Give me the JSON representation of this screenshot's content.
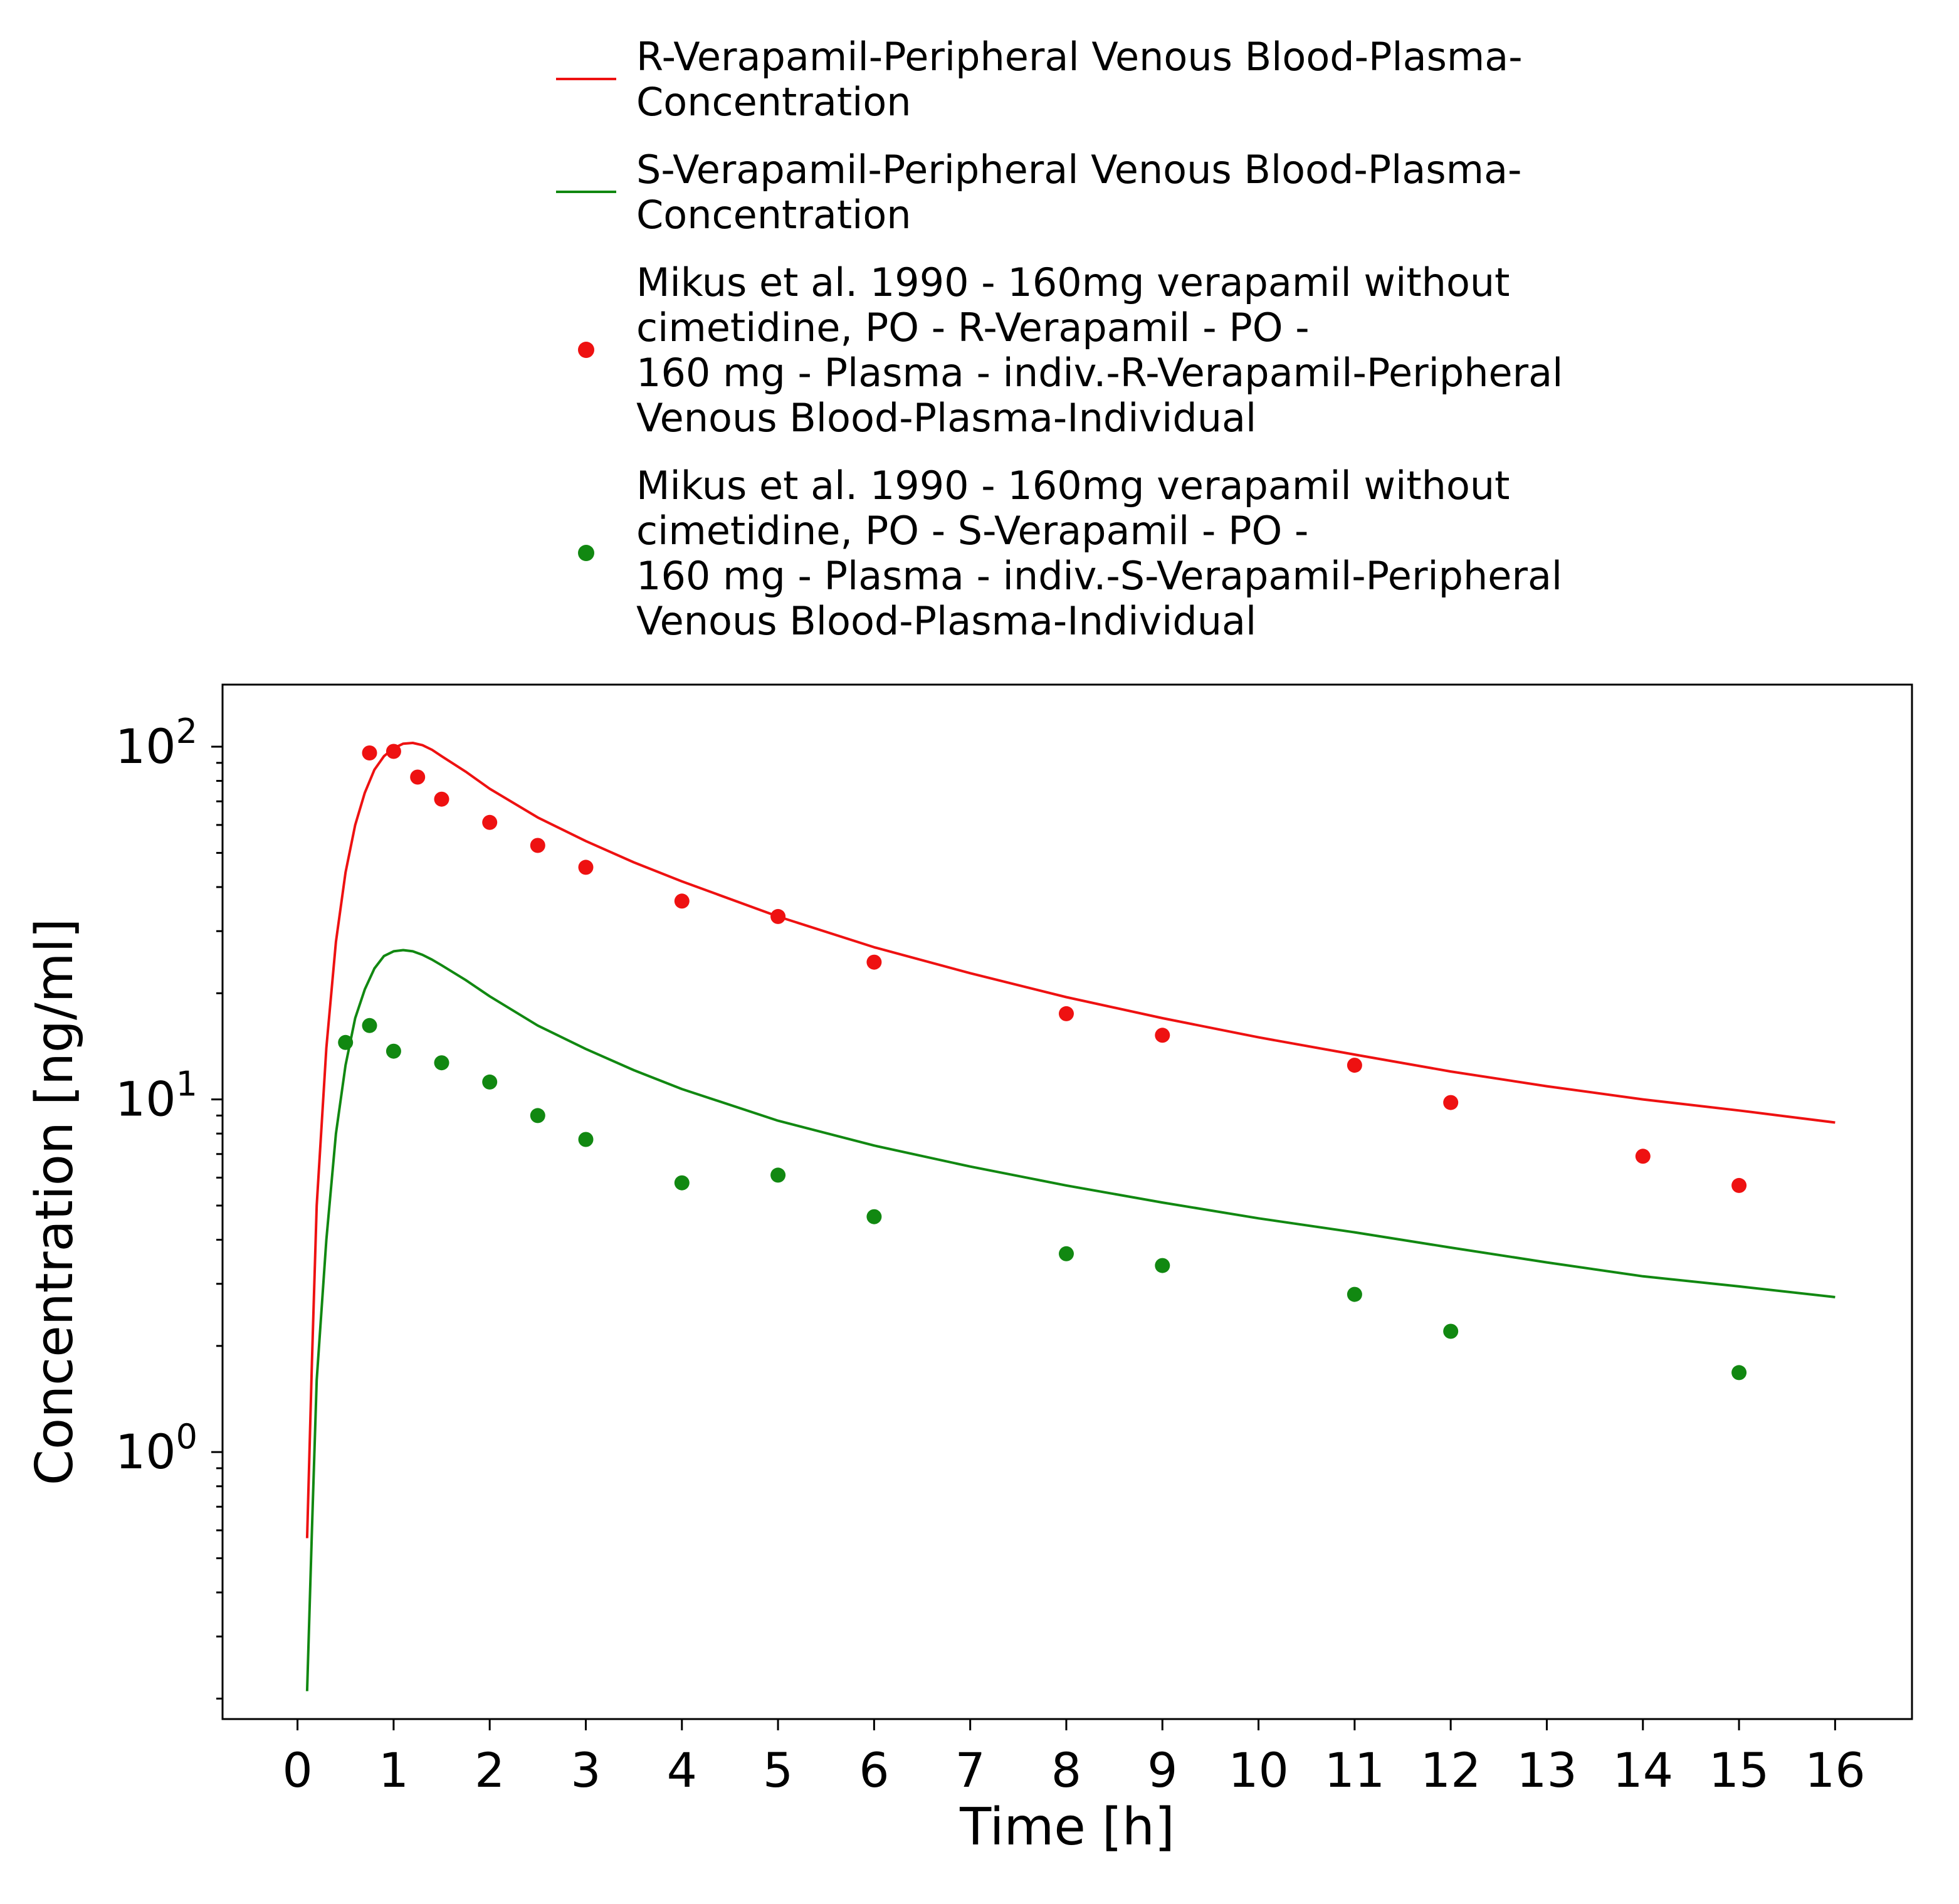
{
  "chart_data": {
    "type": "line",
    "xlabel": "Time [h]",
    "ylabel": "Concentration [ng/ml]",
    "xlim": [
      -0.78,
      16.8
    ],
    "ylim": [
      0.175,
      150
    ],
    "y_scale": "log",
    "grid": false,
    "legend_placement": "top",
    "x_ticks": [
      "0",
      "1",
      "2",
      "3",
      "4",
      "5",
      "6",
      "7",
      "8",
      "9",
      "10",
      "11",
      "12",
      "13",
      "14",
      "15",
      "16"
    ],
    "y_ticks": [
      {
        "value": 1,
        "base": "10",
        "exp": "0"
      },
      {
        "value": 10,
        "base": "10",
        "exp": "1"
      },
      {
        "value": 100,
        "base": "10",
        "exp": "2"
      }
    ],
    "series": [
      {
        "name": "R-Verapamil-Peripheral Venous Blood-Plasma-Concentration",
        "legend_lines": [
          "R-Verapamil-Peripheral Venous Blood-Plasma-",
          "Concentration"
        ],
        "kind": "line",
        "color": "#ee1111",
        "x": [
          0.1,
          0.15,
          0.2,
          0.3,
          0.4,
          0.5,
          0.6,
          0.7,
          0.8,
          0.9,
          1.0,
          1.1,
          1.2,
          1.3,
          1.4,
          1.5,
          1.75,
          2.0,
          2.5,
          3.0,
          3.5,
          4.0,
          5.0,
          6.0,
          7.0,
          8.0,
          9.0,
          10.0,
          11.0,
          12.0,
          13.0,
          14.0,
          15.0,
          16.0
        ],
        "y": [
          0.57,
          1.8,
          5.0,
          14.0,
          28.0,
          44.0,
          60.0,
          74.0,
          86.0,
          94.0,
          99.0,
          102.0,
          102.5,
          101.0,
          98.0,
          94.0,
          85.0,
          76.0,
          63.0,
          54.0,
          47.0,
          41.5,
          33.0,
          27.0,
          22.8,
          19.5,
          17.0,
          15.0,
          13.4,
          12.0,
          10.9,
          10.0,
          9.3,
          8.6
        ]
      },
      {
        "name": "S-Verapamil-Peripheral Venous Blood-Plasma-Concentration",
        "legend_lines": [
          "S-Verapamil-Peripheral Venous Blood-Plasma-",
          "Concentration"
        ],
        "kind": "line",
        "color": "#118811",
        "x": [
          0.1,
          0.15,
          0.2,
          0.3,
          0.4,
          0.5,
          0.6,
          0.7,
          0.8,
          0.9,
          1.0,
          1.1,
          1.2,
          1.3,
          1.4,
          1.5,
          1.75,
          2.0,
          2.5,
          3.0,
          3.5,
          4.0,
          5.0,
          6.0,
          7.0,
          8.0,
          9.0,
          10.0,
          11.0,
          12.0,
          13.0,
          14.0,
          15.0,
          16.0
        ],
        "y": [
          0.21,
          0.6,
          1.6,
          4.0,
          8.0,
          12.5,
          17.0,
          20.5,
          23.5,
          25.5,
          26.3,
          26.5,
          26.3,
          25.7,
          24.9,
          24.0,
          21.8,
          19.6,
          16.2,
          13.9,
          12.1,
          10.7,
          8.7,
          7.4,
          6.45,
          5.7,
          5.1,
          4.6,
          4.2,
          3.8,
          3.45,
          3.15,
          2.95,
          2.75
        ]
      },
      {
        "name": "Mikus et al. 1990 - 160mg verapamil without cimetidine, PO - R-Verapamil - PO - 160 mg - Plasma - indiv.-R-Verapamil-Peripheral Venous Blood-Plasma-Individual",
        "legend_lines": [
          "Mikus et al. 1990 - 160mg verapamil without",
          "cimetidine, PO - R-Verapamil - PO -",
          "160 mg - Plasma - indiv.-R-Verapamil-Peripheral",
          "Venous Blood-Plasma-Individual"
        ],
        "kind": "scatter",
        "color": "#ee1111",
        "x": [
          0.75,
          1.0,
          1.25,
          1.5,
          2.0,
          2.5,
          3.0,
          4.0,
          5.0,
          6.0,
          8.0,
          9.0,
          11.0,
          12.0,
          14.0,
          15.0
        ],
        "y": [
          96.0,
          97.0,
          82.0,
          71.0,
          61.0,
          52.5,
          45.5,
          36.5,
          33.0,
          24.5,
          17.5,
          15.2,
          12.5,
          9.8,
          6.9,
          5.7
        ]
      },
      {
        "name": "Mikus et al. 1990 - 160mg verapamil without cimetidine, PO - S-Verapamil - PO - 160 mg - Plasma - indiv.-S-Verapamil-Peripheral Venous Blood-Plasma-Individual",
        "legend_lines": [
          "Mikus et al. 1990 - 160mg verapamil without",
          "cimetidine, PO - S-Verapamil - PO -",
          "160 mg - Plasma - indiv.-S-Verapamil-Peripheral",
          "Venous Blood-Plasma-Individual"
        ],
        "kind": "scatter",
        "color": "#118811",
        "x": [
          0.5,
          0.75,
          1.0,
          1.5,
          2.0,
          2.5,
          3.0,
          4.0,
          5.0,
          6.0,
          8.0,
          9.0,
          11.0,
          12.0,
          15.0
        ],
        "y": [
          14.5,
          16.2,
          13.7,
          12.7,
          11.2,
          9.0,
          7.7,
          5.8,
          6.1,
          4.65,
          3.65,
          3.38,
          2.8,
          2.2,
          1.68
        ]
      }
    ]
  }
}
